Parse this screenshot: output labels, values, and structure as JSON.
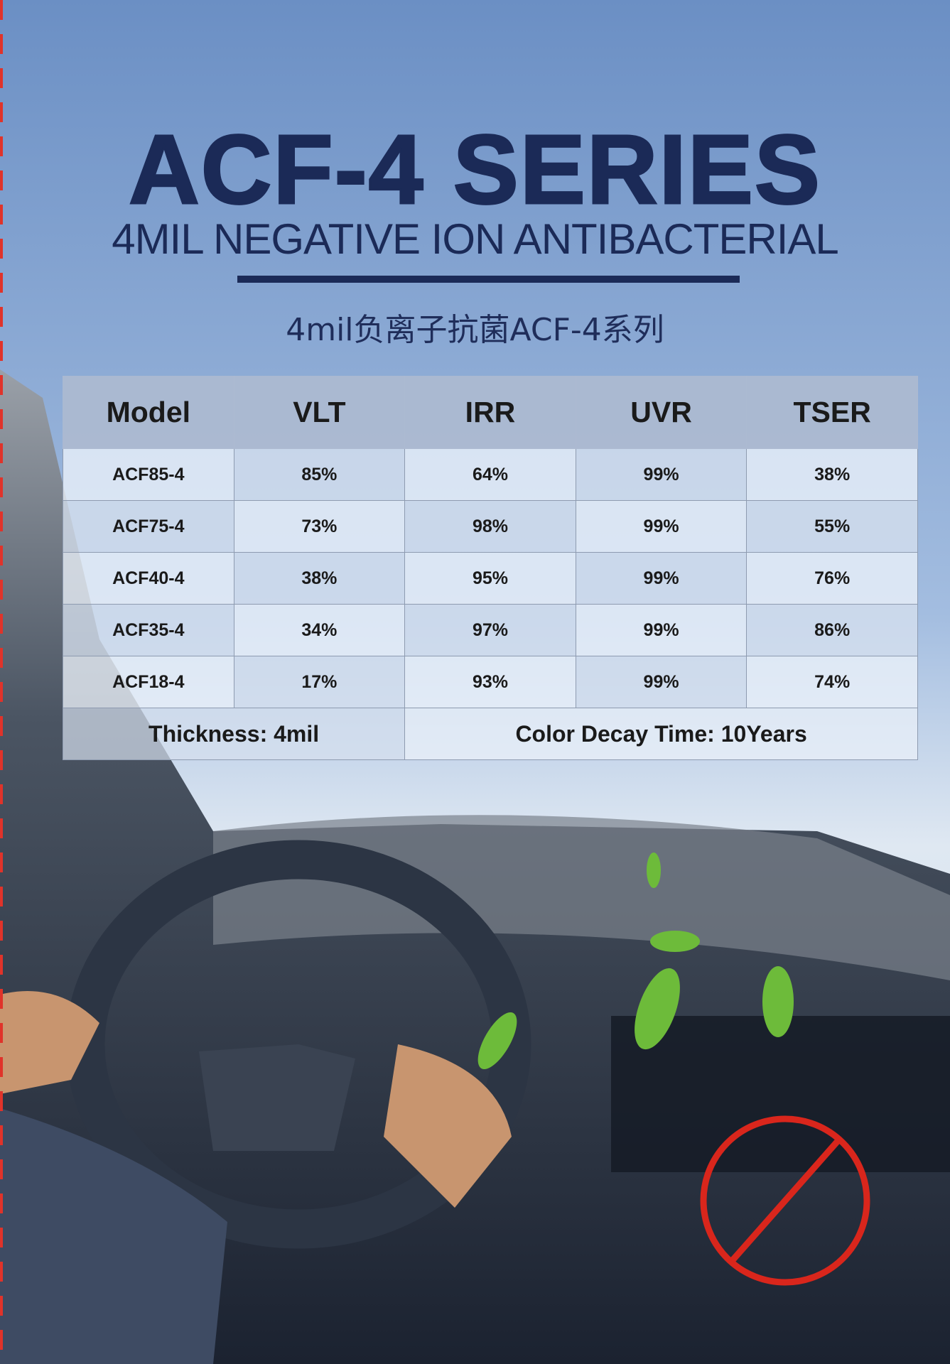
{
  "header": {
    "title": "ACF-4 SERIES",
    "subtitle": "4MIL NEGATIVE ION ANTIBACTERIAL",
    "subtitle_cn": "4mil负离子抗菌ACF-4系列"
  },
  "table": {
    "columns": [
      "Model",
      "VLT",
      "IRR",
      "UVR",
      "TSER"
    ],
    "rows": [
      [
        "ACF85-4",
        "85%",
        "64%",
        "99%",
        "38%"
      ],
      [
        "ACF75-4",
        "73%",
        "98%",
        "99%",
        "55%"
      ],
      [
        "ACF40-4",
        "38%",
        "95%",
        "99%",
        "76%"
      ],
      [
        "ACF35-4",
        "34%",
        "97%",
        "99%",
        "86%"
      ],
      [
        "ACF18-4",
        "17%",
        "93%",
        "99%",
        "74%"
      ]
    ],
    "footer": [
      "Thickness: 4mil",
      "Color Decay Time: 10Years"
    ]
  }
}
